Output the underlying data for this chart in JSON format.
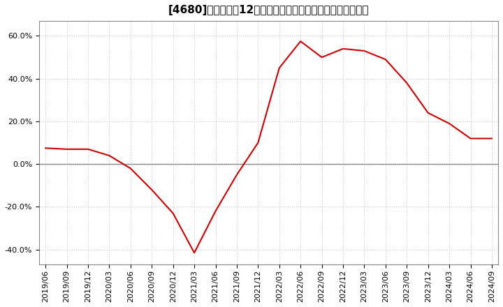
{
  "title": "[4680]　売上高の12か月移動合計の対前年同期増減率の推移",
  "line_color": "#cc0000",
  "background_color": "#ffffff",
  "grid_color": "#bbbbbb",
  "zero_line_color": "#666666",
  "x_labels": [
    "2019/06",
    "2019/09",
    "2019/12",
    "2020/03",
    "2020/06",
    "2020/09",
    "2020/12",
    "2021/03",
    "2021/06",
    "2021/09",
    "2021/12",
    "2022/03",
    "2022/06",
    "2022/09",
    "2022/12",
    "2023/03",
    "2023/06",
    "2023/09",
    "2023/12",
    "2024/03",
    "2024/06",
    "2024/09"
  ],
  "values": [
    7.5,
    7.0,
    7.0,
    4.0,
    -2.0,
    -12.0,
    -23.0,
    -41.5,
    -22.0,
    -5.0,
    10.0,
    45.0,
    57.5,
    50.0,
    54.0,
    53.0,
    49.0,
    38.0,
    24.0,
    19.0,
    12.0,
    12.0
  ],
  "ylim": [
    -47.0,
    67.0
  ],
  "yticks": [
    -40.0,
    -20.0,
    0.0,
    20.0,
    40.0,
    60.0
  ],
  "title_fontsize": 11,
  "tick_fontsize": 8
}
